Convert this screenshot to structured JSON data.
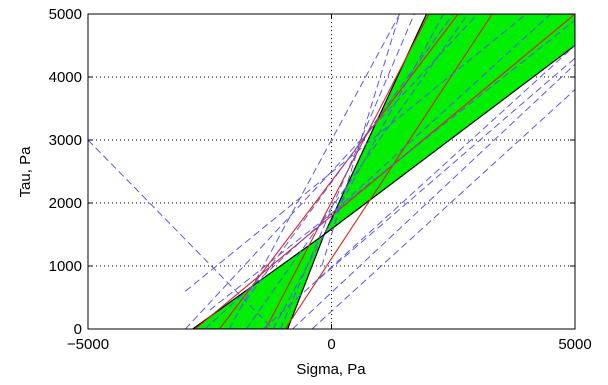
{
  "chart_data": {
    "type": "line",
    "title": "",
    "xlabel": "Sigma, Pa",
    "ylabel": "Tau, Pa",
    "xlim": [
      -5000,
      5000
    ],
    "ylim": [
      0,
      5000
    ],
    "xticks": [
      -5000,
      0,
      5000
    ],
    "yticks": [
      0,
      1000,
      2000,
      3000,
      4000,
      5000
    ],
    "xtick_labels": [
      "−5000",
      "0",
      "5000"
    ],
    "ytick_labels": [
      "0",
      "1000",
      "2000",
      "3000",
      "4000",
      "5000"
    ],
    "grid": "dotted",
    "colors": {
      "band_fill": "#00ee00",
      "band_edge": "#000000",
      "red_lines": "#e02020",
      "blue_dashed": "#5a5ae6",
      "grid": "#000000"
    },
    "intersection_point": [
      -150,
      1500
    ],
    "band": {
      "upper_boundary": [
        [
          -2850,
          0
        ],
        [
          -150,
          1500
        ],
        [
          1950,
          5000
        ]
      ],
      "lower_boundary": [
        [
          -900,
          0
        ],
        [
          -150,
          1500
        ],
        [
          5000,
          4500
        ]
      ]
    },
    "series": [
      {
        "style": "solid-red",
        "points": [
          [
            -2800,
            0
          ],
          [
            5000,
            5000
          ]
        ]
      },
      {
        "style": "solid-red",
        "points": [
          [
            -2300,
            0
          ],
          [
            2600,
            5000
          ]
        ]
      },
      {
        "style": "solid-red",
        "points": [
          [
            -950,
            0
          ],
          [
            3300,
            5000
          ]
        ]
      },
      {
        "style": "solid-red",
        "points": [
          [
            -1350,
            0
          ],
          [
            2000,
            5000
          ]
        ]
      },
      {
        "style": "dashed-blue",
        "points": [
          [
            -3000,
            0
          ],
          [
            3000,
            5000
          ]
        ]
      },
      {
        "style": "dashed-blue",
        "points": [
          [
            -2600,
            0
          ],
          [
            4500,
            5000
          ]
        ]
      },
      {
        "style": "dashed-blue",
        "points": [
          [
            -1750,
            0
          ],
          [
            2800,
            5000
          ]
        ]
      },
      {
        "style": "dashed-blue",
        "points": [
          [
            -1400,
            0
          ],
          [
            5000,
            4500
          ]
        ]
      },
      {
        "style": "dashed-blue",
        "points": [
          [
            -1050,
            0
          ],
          [
            1700,
            5000
          ]
        ]
      },
      {
        "style": "dashed-blue",
        "points": [
          [
            -400,
            0
          ],
          [
            5000,
            3800
          ]
        ]
      },
      {
        "style": "dashed-blue",
        "points": [
          [
            -1200,
            0
          ],
          [
            2300,
            5000
          ]
        ]
      },
      {
        "style": "dashed-blue",
        "points": [
          [
            -2100,
            0
          ],
          [
            1400,
            5000
          ]
        ]
      },
      {
        "style": "dashed-blue",
        "points": [
          [
            -800,
            0
          ],
          [
            5000,
            4200
          ]
        ]
      },
      {
        "style": "dashed-blue",
        "points": [
          [
            -3000,
            600
          ],
          [
            4000,
            5000
          ]
        ]
      },
      {
        "style": "dashed-blue",
        "points": [
          [
            -2500,
            300
          ],
          [
            5000,
            4900
          ]
        ]
      },
      {
        "style": "dashed-blue",
        "points": [
          [
            -200,
            1000
          ],
          [
            1400,
            5000
          ]
        ]
      },
      {
        "style": "dashed-blue",
        "points": [
          [
            -250,
            800
          ],
          [
            5000,
            4300
          ]
        ]
      },
      {
        "style": "dashed-blue",
        "points": [
          [
            -5000,
            3000
          ],
          [
            -1200,
            0
          ]
        ]
      },
      {
        "style": "dashed-blue",
        "points": [
          [
            -1900,
            300
          ],
          [
            2500,
            5000
          ]
        ]
      }
    ]
  }
}
